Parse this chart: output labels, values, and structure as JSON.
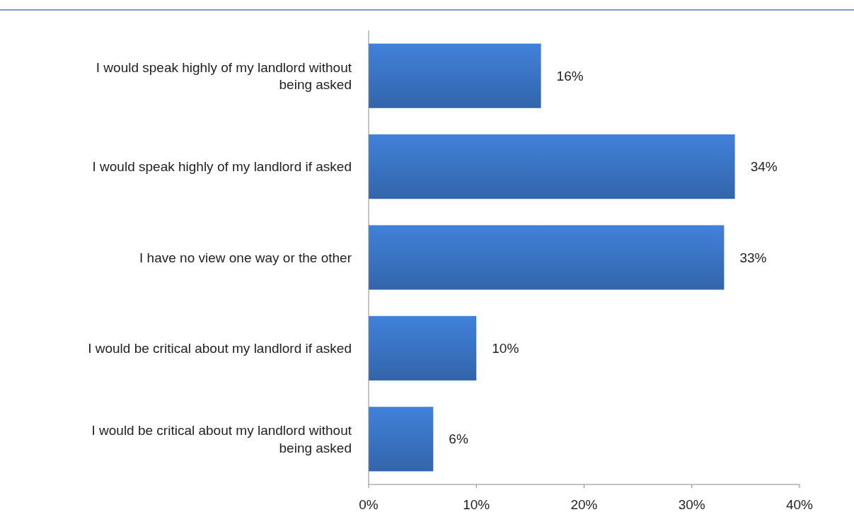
{
  "chart_data": {
    "type": "bar",
    "orientation": "horizontal",
    "categories": [
      "I would speak highly of my landlord without being asked",
      "I would speak highly of my landlord if asked",
      "I have no view one way or the other",
      "I would be critical about my landlord if asked",
      "I would be critical about my landlord without being asked"
    ],
    "values": [
      16,
      34,
      33,
      10,
      6
    ],
    "color": "#3a74c4",
    "value_labels": [
      "16%",
      "34%",
      "33%",
      "10%",
      "6%"
    ],
    "xlim": [
      0,
      40
    ],
    "xticks": [
      {
        "value": 0,
        "label": "0%"
      },
      {
        "value": 10,
        "label": "10%"
      },
      {
        "value": 20,
        "label": "20%"
      },
      {
        "value": 30,
        "label": "30%"
      },
      {
        "value": 40,
        "label": "40%"
      }
    ],
    "grid": false
  }
}
